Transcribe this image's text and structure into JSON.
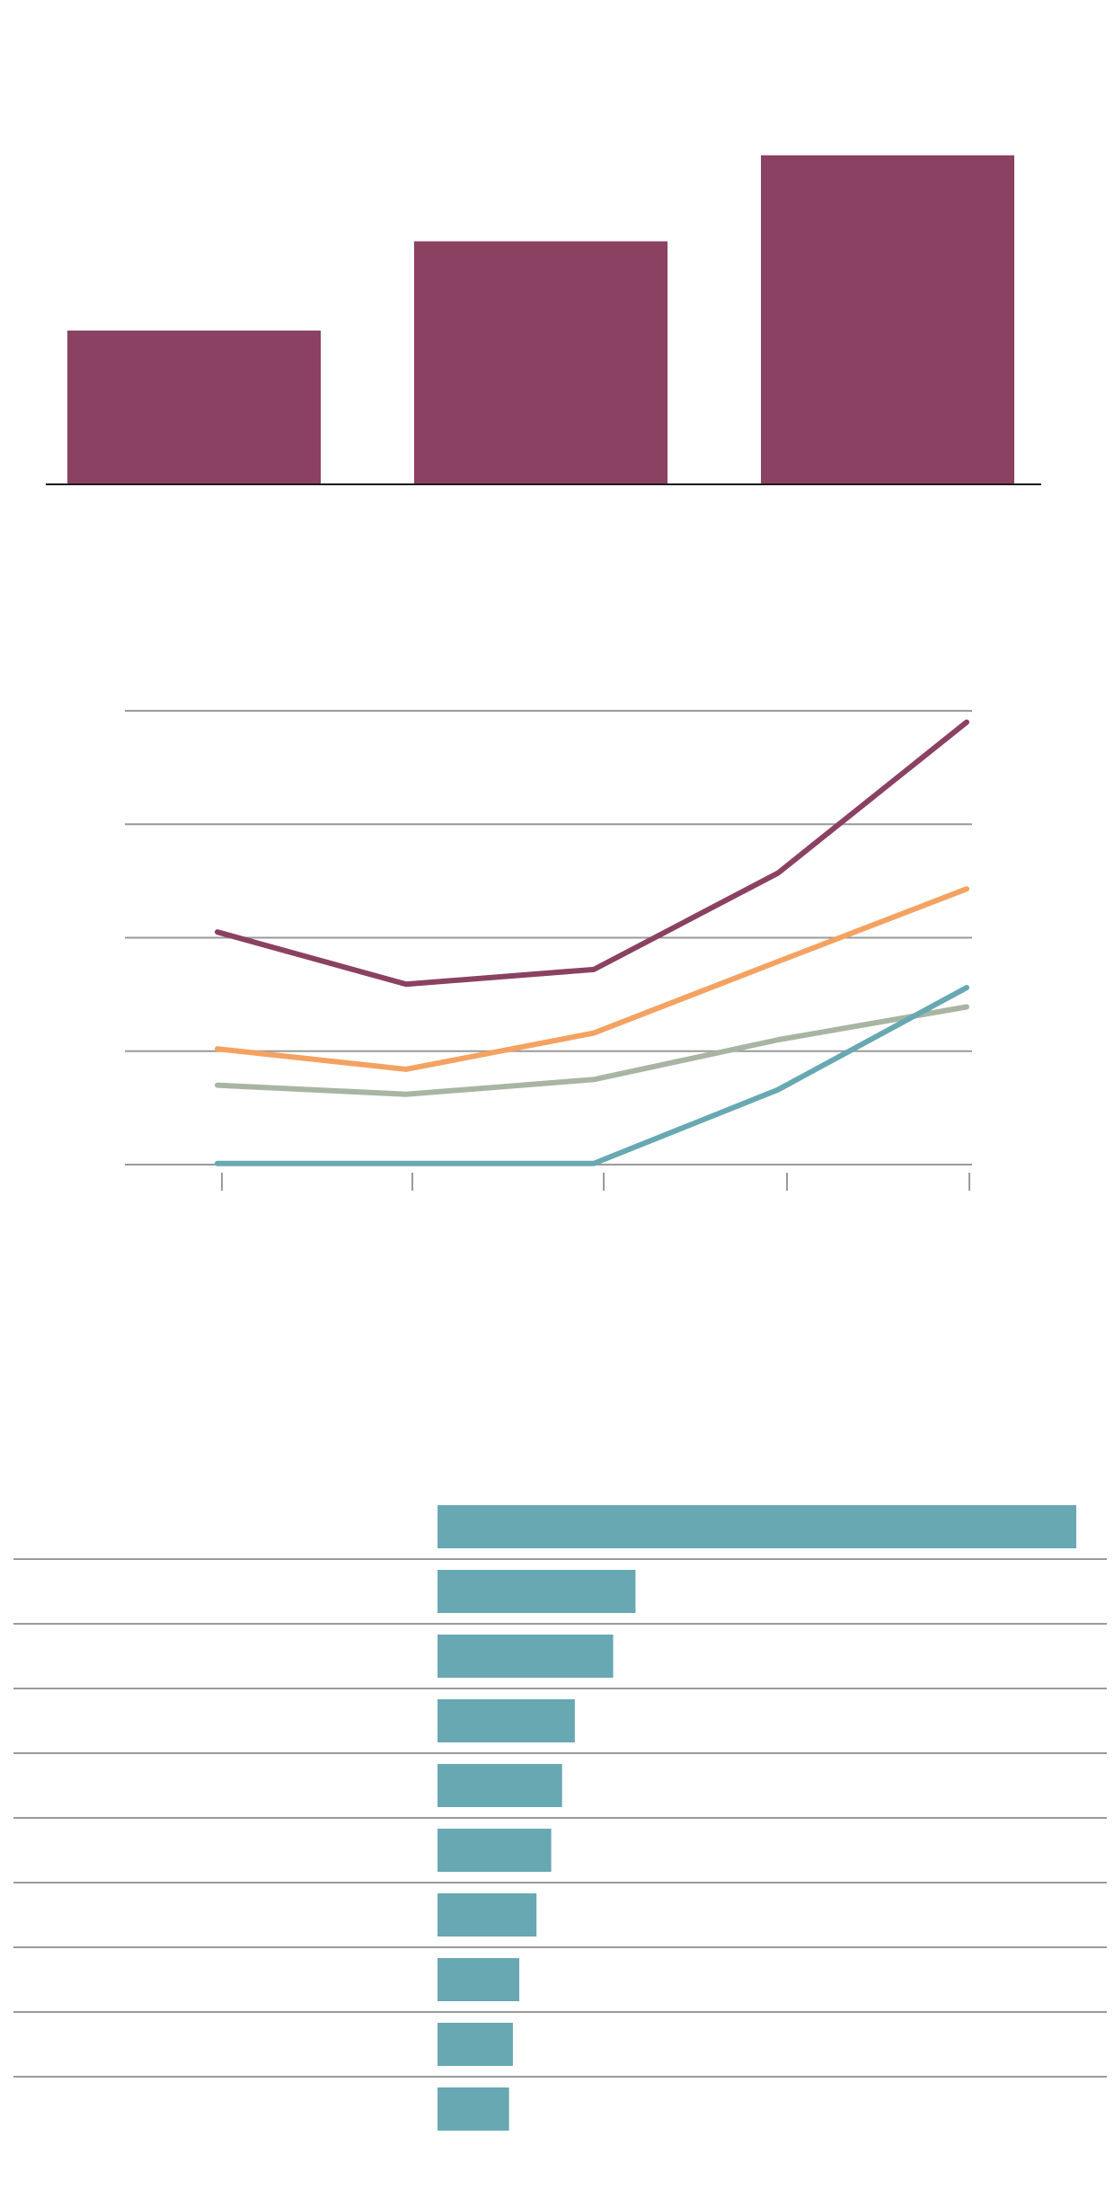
{
  "colors": {
    "plum": "#8a4162",
    "orange": "#f4a261",
    "sage": "#a8b5a2",
    "teal": "#67a8b2",
    "axis": "#1a1a1a",
    "grid": "#9a9a9a"
  },
  "chart_data": [
    {
      "type": "bar",
      "categories": [
        "",
        "",
        ""
      ],
      "values": [
        48,
        76,
        103
      ],
      "ylim": [
        0,
        110
      ],
      "grid": false,
      "legend": "none",
      "color": "#8a4162"
    },
    {
      "type": "line",
      "x": [
        1,
        2,
        3,
        4,
        5
      ],
      "ylim": [
        0,
        4
      ],
      "grid": true,
      "legend": "none",
      "series": [
        {
          "color": "#8a4162",
          "values": [
            2.05,
            1.59,
            1.72,
            2.57,
            3.9
          ]
        },
        {
          "color": "#f4a261",
          "values": [
            1.02,
            0.84,
            1.16,
            1.79,
            2.43
          ]
        },
        {
          "color": "#a8b5a2",
          "values": [
            0.7,
            0.62,
            0.75,
            1.1,
            1.39
          ]
        },
        {
          "color": "#67a8b2",
          "values": [
            0.01,
            0.01,
            0.01,
            0.66,
            1.56
          ]
        }
      ]
    },
    {
      "type": "bar",
      "orientation": "horizontal",
      "categories": [
        "",
        "",
        "",
        "",
        "",
        "",
        "",
        "",
        "",
        ""
      ],
      "values": [
        100,
        31,
        27.5,
        21.5,
        19.5,
        17.8,
        15.5,
        12.8,
        11.8,
        11.2
      ],
      "xlim": [
        0,
        100
      ],
      "grid": false,
      "legend": "none",
      "color": "#67a8b2"
    }
  ]
}
